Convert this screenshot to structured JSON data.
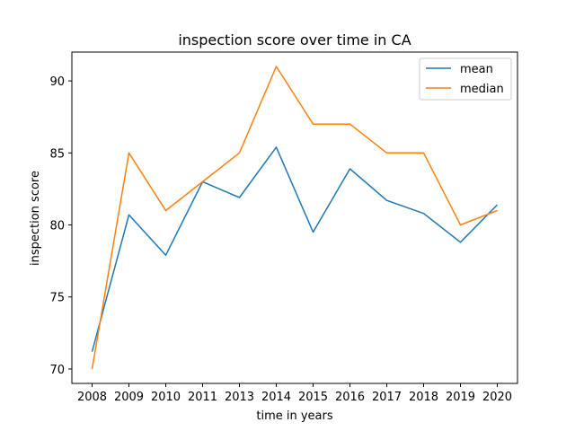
{
  "chart_data": {
    "type": "line",
    "title": "inspection score over time in CA",
    "xlabel": "time in years",
    "ylabel": "inspection score",
    "categories": [
      "2008",
      "2009",
      "2010",
      "2011",
      "2013",
      "2014",
      "2015",
      "2016",
      "2017",
      "2018",
      "2019",
      "2020"
    ],
    "ylim": [
      69,
      92
    ],
    "yticks": [
      70,
      75,
      80,
      85,
      90
    ],
    "grid": false,
    "legend_position": "top-right",
    "series": [
      {
        "name": "mean",
        "color": "#1f77b4",
        "values": [
          71.2,
          80.7,
          77.9,
          83.0,
          81.9,
          85.4,
          79.5,
          83.9,
          81.7,
          80.8,
          78.8,
          81.4
        ]
      },
      {
        "name": "median",
        "color": "#ff7f0e",
        "values": [
          70.0,
          85.0,
          81.0,
          83.0,
          85.0,
          91.0,
          87.0,
          87.0,
          85.0,
          85.0,
          80.0,
          81.0
        ]
      }
    ]
  }
}
